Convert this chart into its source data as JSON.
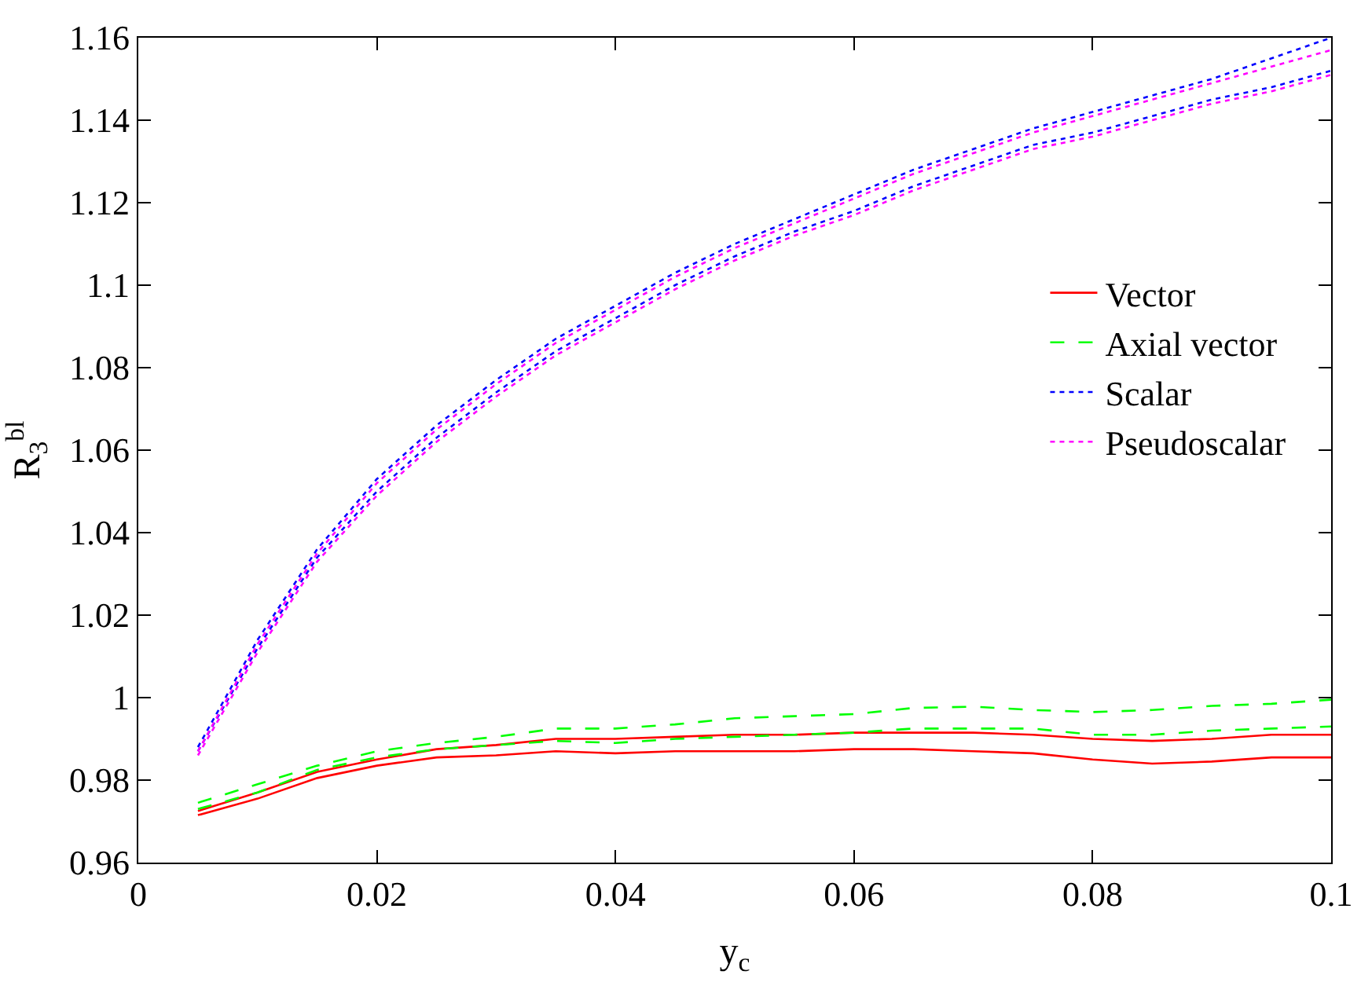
{
  "chart_data": {
    "type": "line",
    "xlabel": "y$_{c}$",
    "ylabel": "R$_{3}$$^{bl}$",
    "x": [
      0.005,
      0.01,
      0.015,
      0.02,
      0.025,
      0.03,
      0.035,
      0.04,
      0.045,
      0.05,
      0.055,
      0.06,
      0.065,
      0.07,
      0.075,
      0.08,
      0.085,
      0.09,
      0.095,
      0.1
    ],
    "series": [
      {
        "name": "Vector",
        "color": "#ff0000",
        "line_style": "solid",
        "values": [
          0.9725,
          0.977,
          0.982,
          0.985,
          0.9875,
          0.9885,
          0.99,
          0.99,
          0.9905,
          0.991,
          0.991,
          0.9915,
          0.9915,
          0.9915,
          0.991,
          0.99,
          0.9895,
          0.99,
          0.991,
          0.991
        ]
      },
      {
        "color": "#ff0000",
        "line_style": "solid",
        "values": [
          0.9715,
          0.9755,
          0.9805,
          0.9835,
          0.9855,
          0.986,
          0.987,
          0.9865,
          0.987,
          0.987,
          0.987,
          0.9875,
          0.9875,
          0.987,
          0.9865,
          0.985,
          0.984,
          0.9845,
          0.9855,
          0.9855
        ]
      },
      {
        "name": "Axial vector",
        "color": "#00ff00",
        "line_style": "dashed",
        "values": [
          0.9745,
          0.979,
          0.9835,
          0.987,
          0.989,
          0.9905,
          0.9925,
          0.9925,
          0.9935,
          0.995,
          0.9955,
          0.996,
          0.9975,
          0.9978,
          0.997,
          0.9965,
          0.997,
          0.998,
          0.9985,
          0.9995
        ]
      },
      {
        "color": "#00ff00",
        "line_style": "dashed",
        "values": [
          0.973,
          0.977,
          0.9825,
          0.9855,
          0.9875,
          0.9885,
          0.9895,
          0.989,
          0.99,
          0.9905,
          0.991,
          0.9915,
          0.9925,
          0.9925,
          0.9925,
          0.991,
          0.991,
          0.992,
          0.9925,
          0.993
        ]
      },
      {
        "name": "Scalar",
        "color": "#0000ff",
        "line_style": "dotted",
        "values": [
          0.988,
          1.014,
          1.036,
          1.053,
          1.066,
          1.077,
          1.087,
          1.095,
          1.103,
          1.11,
          1.116,
          1.122,
          1.128,
          1.133,
          1.138,
          1.142,
          1.146,
          1.15,
          1.155,
          1.16
        ]
      },
      {
        "color": "#0000ff",
        "line_style": "dotted",
        "values": [
          0.987,
          1.012,
          1.034,
          1.05,
          1.063,
          1.074,
          1.084,
          1.092,
          1.1,
          1.107,
          1.113,
          1.118,
          1.124,
          1.129,
          1.134,
          1.137,
          1.141,
          1.145,
          1.148,
          1.152
        ]
      },
      {
        "name": "Pseudoscalar",
        "color": "#ff00ff",
        "line_style": "dotted",
        "values": [
          0.987,
          1.013,
          1.035,
          1.052,
          1.065,
          1.076,
          1.086,
          1.094,
          1.102,
          1.109,
          1.115,
          1.121,
          1.127,
          1.132,
          1.137,
          1.141,
          1.145,
          1.149,
          1.153,
          1.157
        ]
      },
      {
        "color": "#ff00ff",
        "line_style": "dotted",
        "values": [
          0.986,
          1.011,
          1.033,
          1.049,
          1.062,
          1.073,
          1.083,
          1.091,
          1.099,
          1.106,
          1.112,
          1.117,
          1.123,
          1.128,
          1.133,
          1.136,
          1.14,
          1.144,
          1.147,
          1.151
        ]
      }
    ],
    "xlim": [
      0,
      0.1
    ],
    "xticks": [
      0,
      0.02,
      0.04,
      0.06,
      0.08,
      0.1
    ],
    "ylim": [
      0.96,
      1.16
    ],
    "yticks": [
      0.96,
      0.98,
      1,
      1.02,
      1.04,
      1.06,
      1.08,
      1.1,
      1.12,
      1.14,
      1.16
    ],
    "legend": "right",
    "marker": "none"
  }
}
